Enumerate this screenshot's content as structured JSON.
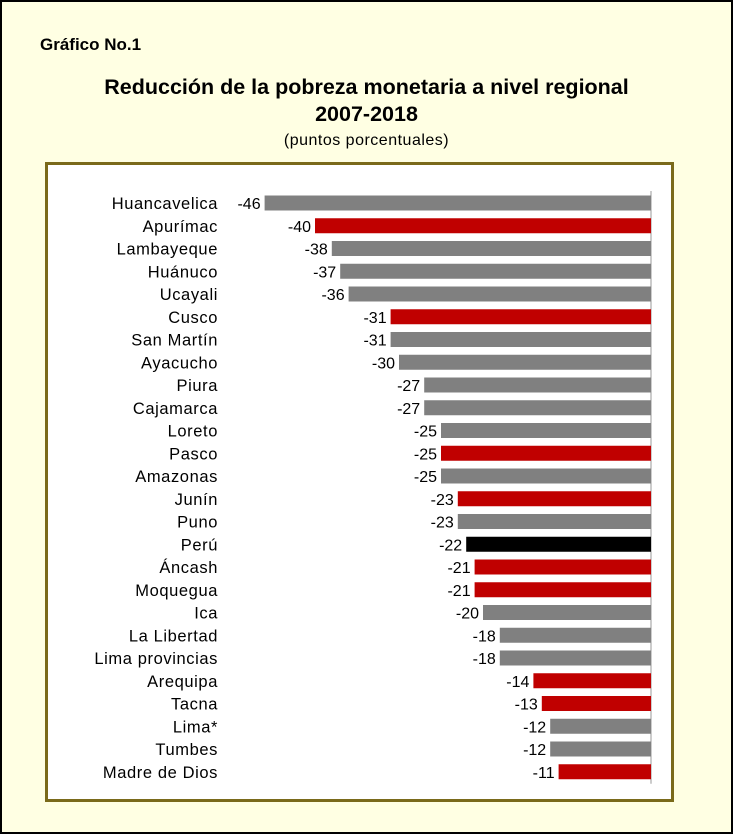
{
  "header": {
    "label": "Gráfico No.1",
    "title_line1": "Reducción de la pobreza monetaria a nivel regional",
    "title_line2": "2007-2018",
    "subtitle": "(puntos porcentuales)"
  },
  "colors": {
    "background": "#ffffe3",
    "border": "#7a6a1a",
    "gray": "#808080",
    "red": "#c00000",
    "black": "#000000"
  },
  "chart_data": {
    "type": "bar",
    "orientation": "horizontal",
    "title": "Reducción de la pobreza monetaria a nivel regional 2007-2018",
    "subtitle": "(puntos porcentuales)",
    "categories": [
      "Huancavelica",
      "Apurímac",
      "Lambayeque",
      "Huánuco",
      "Ucayali",
      "Cusco",
      "San Martín",
      "Ayacucho",
      "Piura",
      "Cajamarca",
      "Loreto",
      "Pasco",
      "Amazonas",
      "Junín",
      "Puno",
      "Perú",
      "Áncash",
      "Moquegua",
      "Ica",
      "La Libertad",
      "Lima provincias",
      "Arequipa",
      "Tacna",
      "Lima*",
      "Tumbes",
      "Madre de Dios"
    ],
    "values": [
      -46,
      -40,
      -38,
      -37,
      -36,
      -31,
      -31,
      -30,
      -27,
      -27,
      -25,
      -25,
      -25,
      -23,
      -23,
      -22,
      -21,
      -21,
      -20,
      -18,
      -18,
      -14,
      -13,
      -12,
      -12,
      -11
    ],
    "bar_colors": [
      "gray",
      "red",
      "gray",
      "gray",
      "gray",
      "red",
      "gray",
      "gray",
      "gray",
      "gray",
      "gray",
      "red",
      "gray",
      "red",
      "gray",
      "black",
      "red",
      "red",
      "gray",
      "gray",
      "gray",
      "red",
      "red",
      "gray",
      "gray",
      "red"
    ],
    "xlim": [
      -46,
      0
    ],
    "grid": false,
    "legend": "none"
  }
}
